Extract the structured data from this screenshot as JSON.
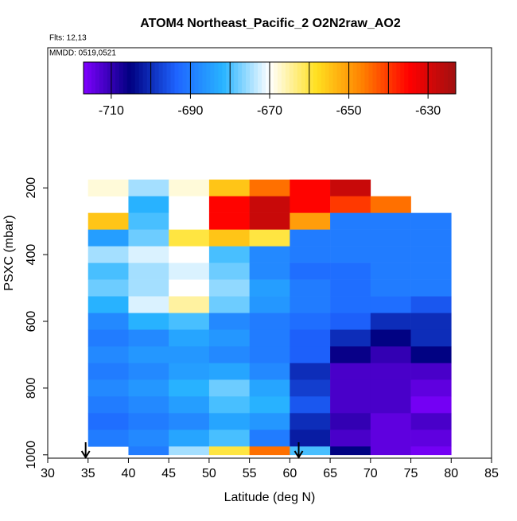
{
  "chart_data": {
    "type": "curtain",
    "title": "ATOM4 Northeast_Pacific_2 O2N2raw_AO2",
    "subtitle_1": "Flts: 12,13",
    "subtitle_2": "MMDD: 0519,0521",
    "x_label": "Latitude (deg N)",
    "y_label": "PSXC (mbar)",
    "xlim": [
      30,
      85
    ],
    "xticks": [
      30,
      35,
      40,
      45,
      50,
      55,
      60,
      65,
      70,
      75,
      80,
      85
    ],
    "ylim": [
      1010,
      -220
    ],
    "yticks": [
      200,
      400,
      600,
      800,
      1000
    ],
    "x_edges": [
      35,
      40,
      45,
      50,
      55,
      60,
      65,
      70,
      75,
      80
    ],
    "y_edges": [
      175,
      225,
      275,
      325,
      375,
      425,
      475,
      525,
      575,
      625,
      675,
      725,
      775,
      825,
      875,
      925,
      975,
      1000
    ],
    "values": [
      [
        -668,
        -675,
        -668,
        -655,
        -645,
        -635,
        -628,
        null,
        null
      ],
      [
        null,
        -682,
        -670,
        -635,
        -628,
        -635,
        -640,
        -645,
        null
      ],
      [
        -655,
        -680,
        -670,
        -635,
        -628,
        -650,
        -690,
        -690,
        -690
      ],
      [
        -685,
        -678,
        -660,
        -655,
        -660,
        -690,
        -690,
        -690,
        -690
      ],
      [
        -675,
        -672,
        -670,
        -680,
        -688,
        -690,
        -690,
        -690,
        -690
      ],
      [
        -680,
        -675,
        -672,
        -678,
        -688,
        -692,
        -692,
        -690,
        -690
      ],
      [
        -678,
        -675,
        -670,
        -676,
        -685,
        -690,
        -692,
        -690,
        -690
      ],
      [
        -682,
        -672,
        -665,
        -678,
        -686,
        -690,
        -692,
        -692,
        -695
      ],
      [
        -688,
        -682,
        -680,
        -688,
        -690,
        -692,
        -694,
        -700,
        -700
      ],
      [
        -690,
        -688,
        -684,
        -686,
        -690,
        -694,
        -700,
        -705,
        -700
      ],
      [
        -688,
        -686,
        -686,
        -688,
        -690,
        -694,
        -706,
        -710,
        -705
      ],
      [
        -690,
        -688,
        -685,
        -684,
        -688,
        -700,
        -712,
        -712,
        -712
      ],
      [
        -688,
        -686,
        -682,
        -678,
        -684,
        -698,
        -712,
        -712,
        -714
      ],
      [
        -690,
        -688,
        -685,
        -680,
        -682,
        -695,
        -712,
        -712,
        -716
      ],
      [
        -692,
        -690,
        -688,
        -684,
        -686,
        -700,
        -710,
        -714,
        -712
      ],
      [
        -690,
        -688,
        -684,
        -680,
        -690,
        -702,
        -712,
        -714,
        -714
      ],
      [
        null,
        -690,
        -675,
        -660,
        -645,
        -680,
        -705,
        -714,
        -716
      ]
    ],
    "markers_x": [
      34.7,
      61.1
    ],
    "zlim": [
      -717,
      -623
    ],
    "zticks": [
      -710,
      -690,
      -670,
      -650,
      -630
    ],
    "colors": [
      "#7f00ff",
      "#000080",
      "#1e64ff",
      "#28b4ff",
      "#ffffff",
      "#ffe020",
      "#ff8000",
      "#ff0000",
      "#a01010"
    ]
  }
}
